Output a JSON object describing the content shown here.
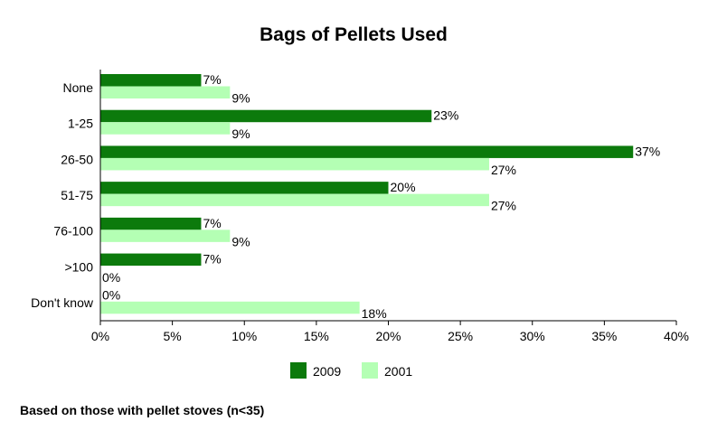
{
  "chart_data": {
    "type": "bar",
    "orientation": "horizontal",
    "title": "Bags of Pellets Used",
    "categories": [
      "None",
      "1-25",
      "26-50",
      "51-75",
      "76-100",
      ">100",
      "Don't know"
    ],
    "series": [
      {
        "name": "2009",
        "color": "#0c7a0c",
        "values": [
          7,
          23,
          37,
          20,
          7,
          7,
          0
        ]
      },
      {
        "name": "2001",
        "color": "#b4ffb4",
        "values": [
          9,
          9,
          27,
          27,
          9,
          0,
          18
        ]
      }
    ],
    "xlim": [
      0,
      40
    ],
    "xticks": [
      "0%",
      "5%",
      "10%",
      "15%",
      "20%",
      "25%",
      "30%",
      "35%",
      "40%"
    ],
    "value_suffix": "%",
    "legend": "bottom",
    "grid": false
  },
  "footnote": "Based on those with pellet stoves (n<35)"
}
